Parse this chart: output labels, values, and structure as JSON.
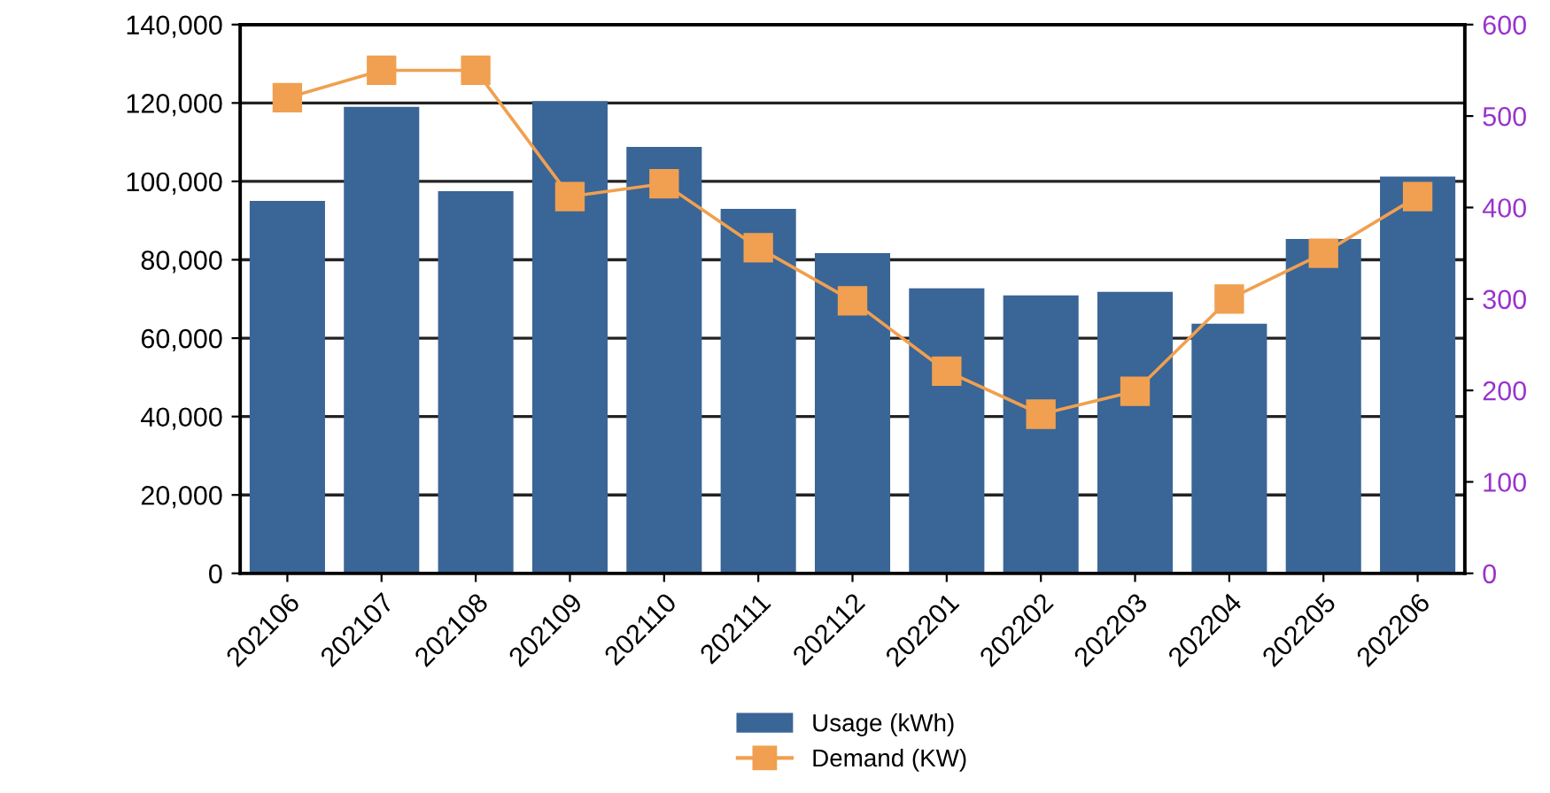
{
  "chart_data": {
    "type": "bar",
    "categories": [
      "202106",
      "202107",
      "202108",
      "202109",
      "202110",
      "202111",
      "202112",
      "202201",
      "202202",
      "202203",
      "202204",
      "202205",
      "202206"
    ],
    "series": [
      {
        "name": "Usage (kWh)",
        "color": "#3a6597",
        "values": [
          95000,
          119000,
          97500,
          120500,
          108800,
          93000,
          81700,
          72700,
          70900,
          71800,
          63700,
          85300,
          101200
        ]
      },
      {
        "name": "Demand (KW)",
        "type": "line",
        "axis": "y2",
        "color": "#f0a050",
        "marker": "square",
        "values": [
          520,
          550,
          550,
          412,
          426,
          356,
          298,
          221,
          174,
          199,
          300,
          350,
          412
        ]
      }
    ],
    "ylim": [
      0,
      140000
    ],
    "yticks": [
      {
        "value": 0,
        "label": "0"
      },
      {
        "value": 20000,
        "label": "20,000"
      },
      {
        "value": 40000,
        "label": "40,000"
      },
      {
        "value": 60000,
        "label": "60,000"
      },
      {
        "value": 80000,
        "label": "80,000"
      },
      {
        "value": 100000,
        "label": "100,000"
      },
      {
        "value": 120000,
        "label": "120,000"
      },
      {
        "value": 140000,
        "label": "140,000"
      }
    ],
    "y2lim": [
      0,
      600
    ],
    "y2ticks": [
      0,
      100,
      200,
      300,
      400,
      500,
      600
    ],
    "grid": "y",
    "legend": "bottom"
  }
}
